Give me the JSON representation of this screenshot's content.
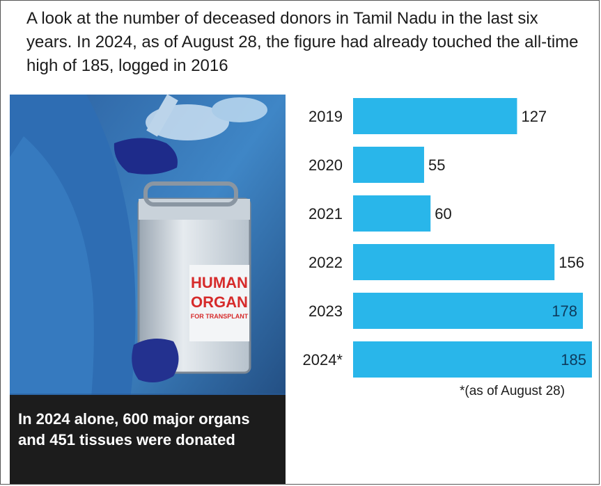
{
  "intro_text": "A look at the number of deceased donors in Tamil Nadu in the last six years. In 2024, as of August 28, the figure had already touched the all-time high of 185, logged in 2016",
  "photo": {
    "label_line1": "HUMAN",
    "label_line2": "ORGAN",
    "label_line3": "FOR TRANSPLANT",
    "caption": "In 2024 alone, 600 major organs and 451 tissues were donated"
  },
  "footnote": "*(as of August 28)",
  "colors": {
    "bar": "#29b6ea",
    "caption_bg": "#1c1c1c"
  },
  "chart_data": {
    "type": "bar",
    "orientation": "horizontal",
    "categories": [
      "2019",
      "2020",
      "2021",
      "2022",
      "2023",
      "2024*"
    ],
    "values": [
      127,
      55,
      60,
      156,
      178,
      185
    ],
    "value_labels": [
      "127",
      "55",
      "60",
      "156",
      "178",
      "185"
    ],
    "title": "",
    "xlabel": "",
    "ylabel": "",
    "xlim": [
      0,
      185
    ]
  }
}
